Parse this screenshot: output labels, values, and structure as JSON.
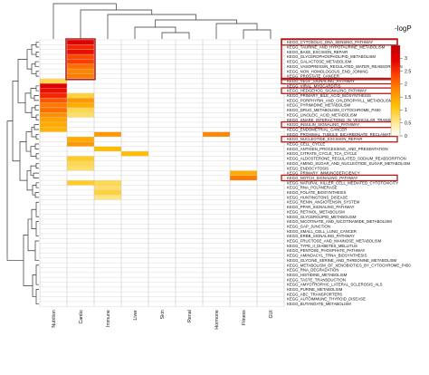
{
  "chart_data": {
    "type": "heatmap",
    "title": "",
    "xlabel": "",
    "ylabel": "",
    "colorbar": {
      "title": "-logP",
      "range": [
        0,
        3.5
      ],
      "ticks": [
        "3",
        "2.5",
        "2",
        "1.5",
        "1",
        "0.5",
        "0"
      ],
      "colors": [
        "#ffffff",
        "#ffe680",
        "#ffc000",
        "#ff8c00",
        "#ff4500",
        "#e60000",
        "#c00000"
      ]
    },
    "columns": [
      "Nutrition",
      "Cardio",
      "Immune",
      "Liver",
      "Skin",
      "Renal",
      "Hormone",
      "Fitness",
      "GUI"
    ],
    "rows": [
      "KEGG_CYTOSOLIC_DNA_SENSING_PATHWAY",
      "KEGG_TAURINE_AND_HYPOTAURINE_METABOLISM",
      "KEGG_BASE_EXCISION_REPAIR",
      "KEGG_GLYCEROPHOSPHOLIPID_METABOLISM",
      "KEGG_GALACTOSE_METABOLISM",
      "KEGG_VASOPRESSIN_REGULATED_WATER_REABSORPTION",
      "KEGG_NON_HOMOLOGOUS_END_JOINING",
      "KEGG_PROSTATE_CANCER",
      "KEGG_VEGF_SIGNALING_PATHWAY",
      "KEGG_VIRAL_MYOCARDITIS",
      "KEGG_HEDGEHOG_SIGNALING_PATHWAY",
      "KEGG_PRIMARY_BILE_ACID_BIOSYNTHESIS",
      "KEGG_PORPHYRIN_AND_CHLOROPHYLL_METABOLISM",
      "KEGG_PYRIMIDINE_METABOLISM",
      "KEGG_DRUG_METABOLISM_CYTOCHROME_P450",
      "KEGG_LINOLEIC_ACID_METABOLISM",
      "KEGG_SNARE_INTERACTIONS_IN_VESICULAR_TRANSPORT",
      "KEGG_INSULIN_SIGNALING_PATHWAY",
      "KEGG_ENDOMETRIAL_CANCER",
      "KEGG_PROXIMAL_TUBULE_BICARBONATE_RECLAMATION",
      "KEGG_NUCLEOTIDE_EXCISION_REPAIR",
      "KEGG_CELL_CYCLE",
      "KEGG_ANTIGEN_PROCESSING_AND_PRESENTATION",
      "KEGG_CITRATE_CYCLE_TCA_CYCLE",
      "KEGG_ALDOSTERONE_REGULATED_SODIUM_REABSORPTION",
      "KEGG_AMINO_SUGAR_AND_NUCLEOTIDE_SUGAR_METABOLISM",
      "KEGG_ENDOCYTOSIS",
      "KEGG_PRIMARY_IMMUNODEFICIENCY",
      "KEGG_NOTCH_SIGNALING_PATHWAY",
      "KEGG_NATURAL_KILLER_CELL_MEDIATED_CYTOTOXICITY",
      "KEGG_RNA_POLYMERASE",
      "KEGG_FOLATE_BIOSYNTHESIS",
      "KEGG_HUNTINGTONS_DISEASE",
      "KEGG_RENIN_ANGIOTENSIN_SYSTEM",
      "KEGG_PPAR_SIGNALING_PATHWAY",
      "KEGG_RETINOL_METABOLISM",
      "KEGG_GLYCEROLIPID_METABOLISM",
      "KEGG_NICOTINATE_AND_NICOTINAMIDE_METABOLISM",
      "KEGG_GAP_JUNCTION",
      "KEGG_SMALL_CELL_LUNG_CANCER",
      "KEGG_ERBB_SIGNALING_PATHWAY",
      "KEGG_FRUCTOSE_AND_MANNOSE_METABOLISM",
      "KEGG_TYPE_II_DIABETES_MELLITUS",
      "KEGG_PENTOSE_PHOSPHATE_PATHWAY",
      "KEGG_AMINOACYL_TRNA_BIOSYNTHESIS",
      "KEGG_GLYCINE_SERINE_AND_THREONINE_METABOLISM",
      "KEGG_METABOLISM_OF_XENOBIOTICS_BY_CYTOCHROME_P450",
      "KEGG_RNA_DEGRADATION",
      "KEGG_HISTIDINE_METABOLISM",
      "KEGG_TASTE_TRANSDUCTION",
      "KEGG_AMYOTROPHIC_LATERAL_SCLEROSIS_ALS",
      "KEGG_PURINE_METABOLISM",
      "KEGG_ABC_TRANSPORTERS",
      "KEGG_AUTOIMMUNE_THYROID_DISEASE",
      "KEGG_BUTANOATE_METABOLISM"
    ],
    "values": [
      [
        0,
        3.0,
        0,
        0,
        0,
        0,
        0,
        0,
        0
      ],
      [
        0,
        2.6,
        0,
        0,
        0,
        0,
        0,
        0,
        0
      ],
      [
        0,
        2.8,
        0,
        0,
        0,
        0,
        0,
        0,
        0
      ],
      [
        0,
        2.3,
        0,
        0,
        0,
        0,
        0,
        0,
        0
      ],
      [
        0,
        2.4,
        0,
        0,
        0,
        0,
        0,
        0,
        0
      ],
      [
        0,
        2.0,
        0,
        0,
        0,
        0,
        0,
        0,
        0
      ],
      [
        0,
        1.8,
        0,
        0,
        0,
        0,
        0,
        0,
        0
      ],
      [
        0,
        1.9,
        0,
        0,
        0,
        0,
        0,
        0,
        0
      ],
      [
        0.8,
        0,
        0,
        0,
        0,
        0,
        0,
        0,
        0
      ],
      [
        3.0,
        0,
        0,
        0,
        0,
        0,
        0,
        0,
        0
      ],
      [
        2.8,
        0,
        0,
        0,
        0,
        0,
        0,
        0,
        0
      ],
      [
        2.6,
        0.9,
        0,
        0,
        0,
        0,
        0,
        0,
        0
      ],
      [
        2.2,
        1.6,
        0,
        0,
        0,
        0,
        0,
        0,
        0
      ],
      [
        1.9,
        1.4,
        0,
        0,
        0,
        0,
        0,
        0,
        0
      ],
      [
        2.0,
        0.8,
        0,
        0,
        0,
        0,
        0,
        0,
        0
      ],
      [
        1.7,
        0.7,
        0,
        0,
        0,
        0,
        0,
        0,
        0
      ],
      [
        1.5,
        0,
        0,
        0,
        0,
        0,
        0,
        0,
        0
      ],
      [
        1.4,
        0,
        0,
        0,
        0,
        0,
        0,
        0,
        0
      ],
      [
        1.3,
        0,
        0,
        0,
        0,
        0,
        0,
        0,
        0
      ],
      [
        0,
        0,
        1.6,
        0,
        0,
        0,
        1.8,
        0,
        0
      ],
      [
        0,
        1.4,
        0,
        0,
        0,
        0,
        0,
        0,
        0
      ],
      [
        0,
        1.6,
        0,
        0,
        0,
        0,
        0,
        0,
        0
      ],
      [
        0,
        0,
        1.2,
        0,
        0,
        0,
        0,
        0,
        0
      ],
      [
        0,
        0,
        0,
        1.2,
        0,
        0,
        0,
        0,
        0
      ],
      [
        0,
        1.0,
        0,
        0,
        0,
        0,
        0,
        0,
        0
      ],
      [
        0,
        0.8,
        0,
        0,
        0,
        0,
        0,
        0,
        0
      ],
      [
        0,
        0.7,
        0,
        0,
        0,
        0,
        0,
        0,
        0
      ],
      [
        0,
        0,
        0,
        0,
        0,
        0,
        0,
        1.4,
        0
      ],
      [
        0,
        0,
        0,
        0,
        0,
        0,
        0,
        1.9,
        0
      ],
      [
        0,
        1.0,
        0.8,
        0,
        0,
        0,
        0,
        0,
        0
      ],
      [
        0,
        0,
        0.7,
        0,
        0,
        0,
        0,
        0,
        0
      ],
      [
        0,
        0,
        0.9,
        0,
        0,
        0,
        0,
        0,
        0
      ],
      [
        0,
        0,
        0.6,
        0,
        0,
        0,
        0,
        0,
        0
      ],
      [
        0,
        0,
        0,
        0,
        0,
        0,
        0,
        0,
        0
      ],
      [
        0,
        0,
        0,
        0,
        0,
        0,
        0,
        0,
        0
      ],
      [
        0,
        0,
        0,
        0,
        0,
        0,
        0,
        0,
        0
      ],
      [
        0,
        0,
        0,
        0,
        0,
        0,
        0,
        0,
        0
      ],
      [
        0,
        0,
        0,
        0,
        0,
        0,
        0,
        0,
        0
      ],
      [
        0,
        0,
        0,
        0,
        0,
        0,
        0,
        0,
        0
      ],
      [
        0,
        0,
        0,
        0,
        0,
        0,
        0,
        0,
        0
      ],
      [
        0,
        0,
        0,
        0,
        0,
        0,
        0,
        0,
        0
      ],
      [
        0,
        0,
        0,
        0,
        0,
        0,
        0,
        0,
        0
      ],
      [
        0,
        0,
        0,
        0,
        0,
        0,
        0,
        0,
        0
      ],
      [
        0,
        0,
        0,
        0,
        0,
        0,
        0,
        0,
        0
      ],
      [
        0,
        0,
        0,
        0,
        0,
        0,
        0,
        0,
        0
      ],
      [
        0,
        0,
        0,
        0,
        0,
        0,
        0,
        0,
        0
      ],
      [
        0,
        0,
        0,
        0,
        0,
        0,
        0,
        0,
        0
      ],
      [
        0,
        0,
        0,
        0,
        0,
        0,
        0,
        0,
        0
      ],
      [
        0,
        0,
        0,
        0,
        0,
        0,
        0,
        0,
        0
      ],
      [
        0,
        0,
        0,
        0,
        0,
        0,
        0,
        0,
        0
      ],
      [
        0,
        0,
        0,
        0,
        0,
        0,
        0,
        0,
        0
      ],
      [
        0,
        0,
        0,
        0,
        0,
        0,
        0,
        0,
        0
      ],
      [
        0,
        0,
        0,
        0,
        0,
        0,
        0,
        0,
        0
      ],
      [
        0,
        0,
        0,
        0,
        0,
        0,
        0,
        0,
        0
      ],
      [
        0,
        0,
        0,
        0,
        0,
        0,
        0,
        0,
        0
      ]
    ],
    "highlighted_rows": [
      0,
      8,
      10,
      17,
      20,
      28
    ],
    "highlighted_block": {
      "column": "Cardio",
      "rows": [
        0,
        7
      ]
    },
    "highlight_color": "#b01818",
    "dendrograms": {
      "rows": true,
      "columns": true
    }
  }
}
